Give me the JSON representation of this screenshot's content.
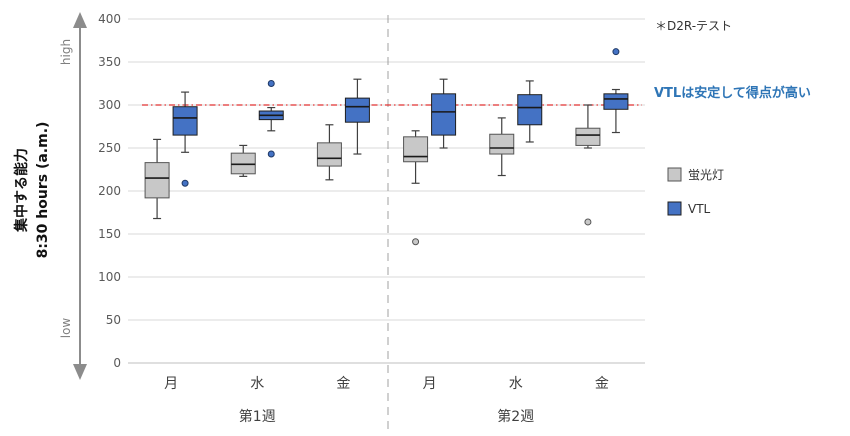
{
  "chart_data": {
    "type": "box",
    "ylabel": [
      "集中する能力",
      "8:30 hours (a.m.)"
    ],
    "ylim": [
      0,
      400
    ],
    "yticks": [
      0,
      50,
      100,
      150,
      200,
      250,
      300,
      350,
      400
    ],
    "y_high_label": "high",
    "y_low_label": "low",
    "note": "＊D2R-テスト",
    "annotation": "VTLは安定して得点が高い",
    "threshold": 300,
    "weeks": [
      "第1週",
      "第2週"
    ],
    "categories": [
      "月",
      "水",
      "金",
      "月",
      "水",
      "金"
    ],
    "series": [
      {
        "name": "蛍光灯",
        "color": "#c8c8c8",
        "stroke": "#555555",
        "boxes": [
          {
            "min": 168,
            "q1": 192,
            "median": 215,
            "q3": 233,
            "max": 260,
            "outliers": []
          },
          {
            "min": 217,
            "q1": 220,
            "median": 231,
            "q3": 244,
            "max": 253,
            "outliers": []
          },
          {
            "min": 213,
            "q1": 229,
            "median": 238,
            "q3": 256,
            "max": 277,
            "outliers": []
          },
          {
            "min": 209,
            "q1": 234,
            "median": 240,
            "q3": 263,
            "max": 270,
            "outliers": [
              141
            ]
          },
          {
            "min": 218,
            "q1": 243,
            "median": 250,
            "q3": 266,
            "max": 285,
            "outliers": []
          },
          {
            "min": 250,
            "q1": 253,
            "median": 265,
            "q3": 273,
            "max": 300,
            "outliers": [
              164
            ]
          }
        ]
      },
      {
        "name": "VTL",
        "color": "#4472c4",
        "stroke": "#1f1f1f",
        "boxes": [
          {
            "min": 245,
            "q1": 265,
            "median": 285,
            "q3": 298,
            "max": 315,
            "outliers": [
              209
            ]
          },
          {
            "min": 270,
            "q1": 283,
            "median": 288,
            "q3": 293,
            "max": 297,
            "outliers": [
              325,
              243
            ]
          },
          {
            "min": 243,
            "q1": 280,
            "median": 298,
            "q3": 308,
            "max": 330,
            "outliers": []
          },
          {
            "min": 250,
            "q1": 265,
            "median": 292,
            "q3": 313,
            "max": 330,
            "outliers": []
          },
          {
            "min": 257,
            "q1": 277,
            "median": 297,
            "q3": 312,
            "max": 328,
            "outliers": []
          },
          {
            "min": 268,
            "q1": 295,
            "median": 307,
            "q3": 313,
            "max": 318,
            "outliers": [
              362
            ]
          }
        ]
      }
    ]
  }
}
